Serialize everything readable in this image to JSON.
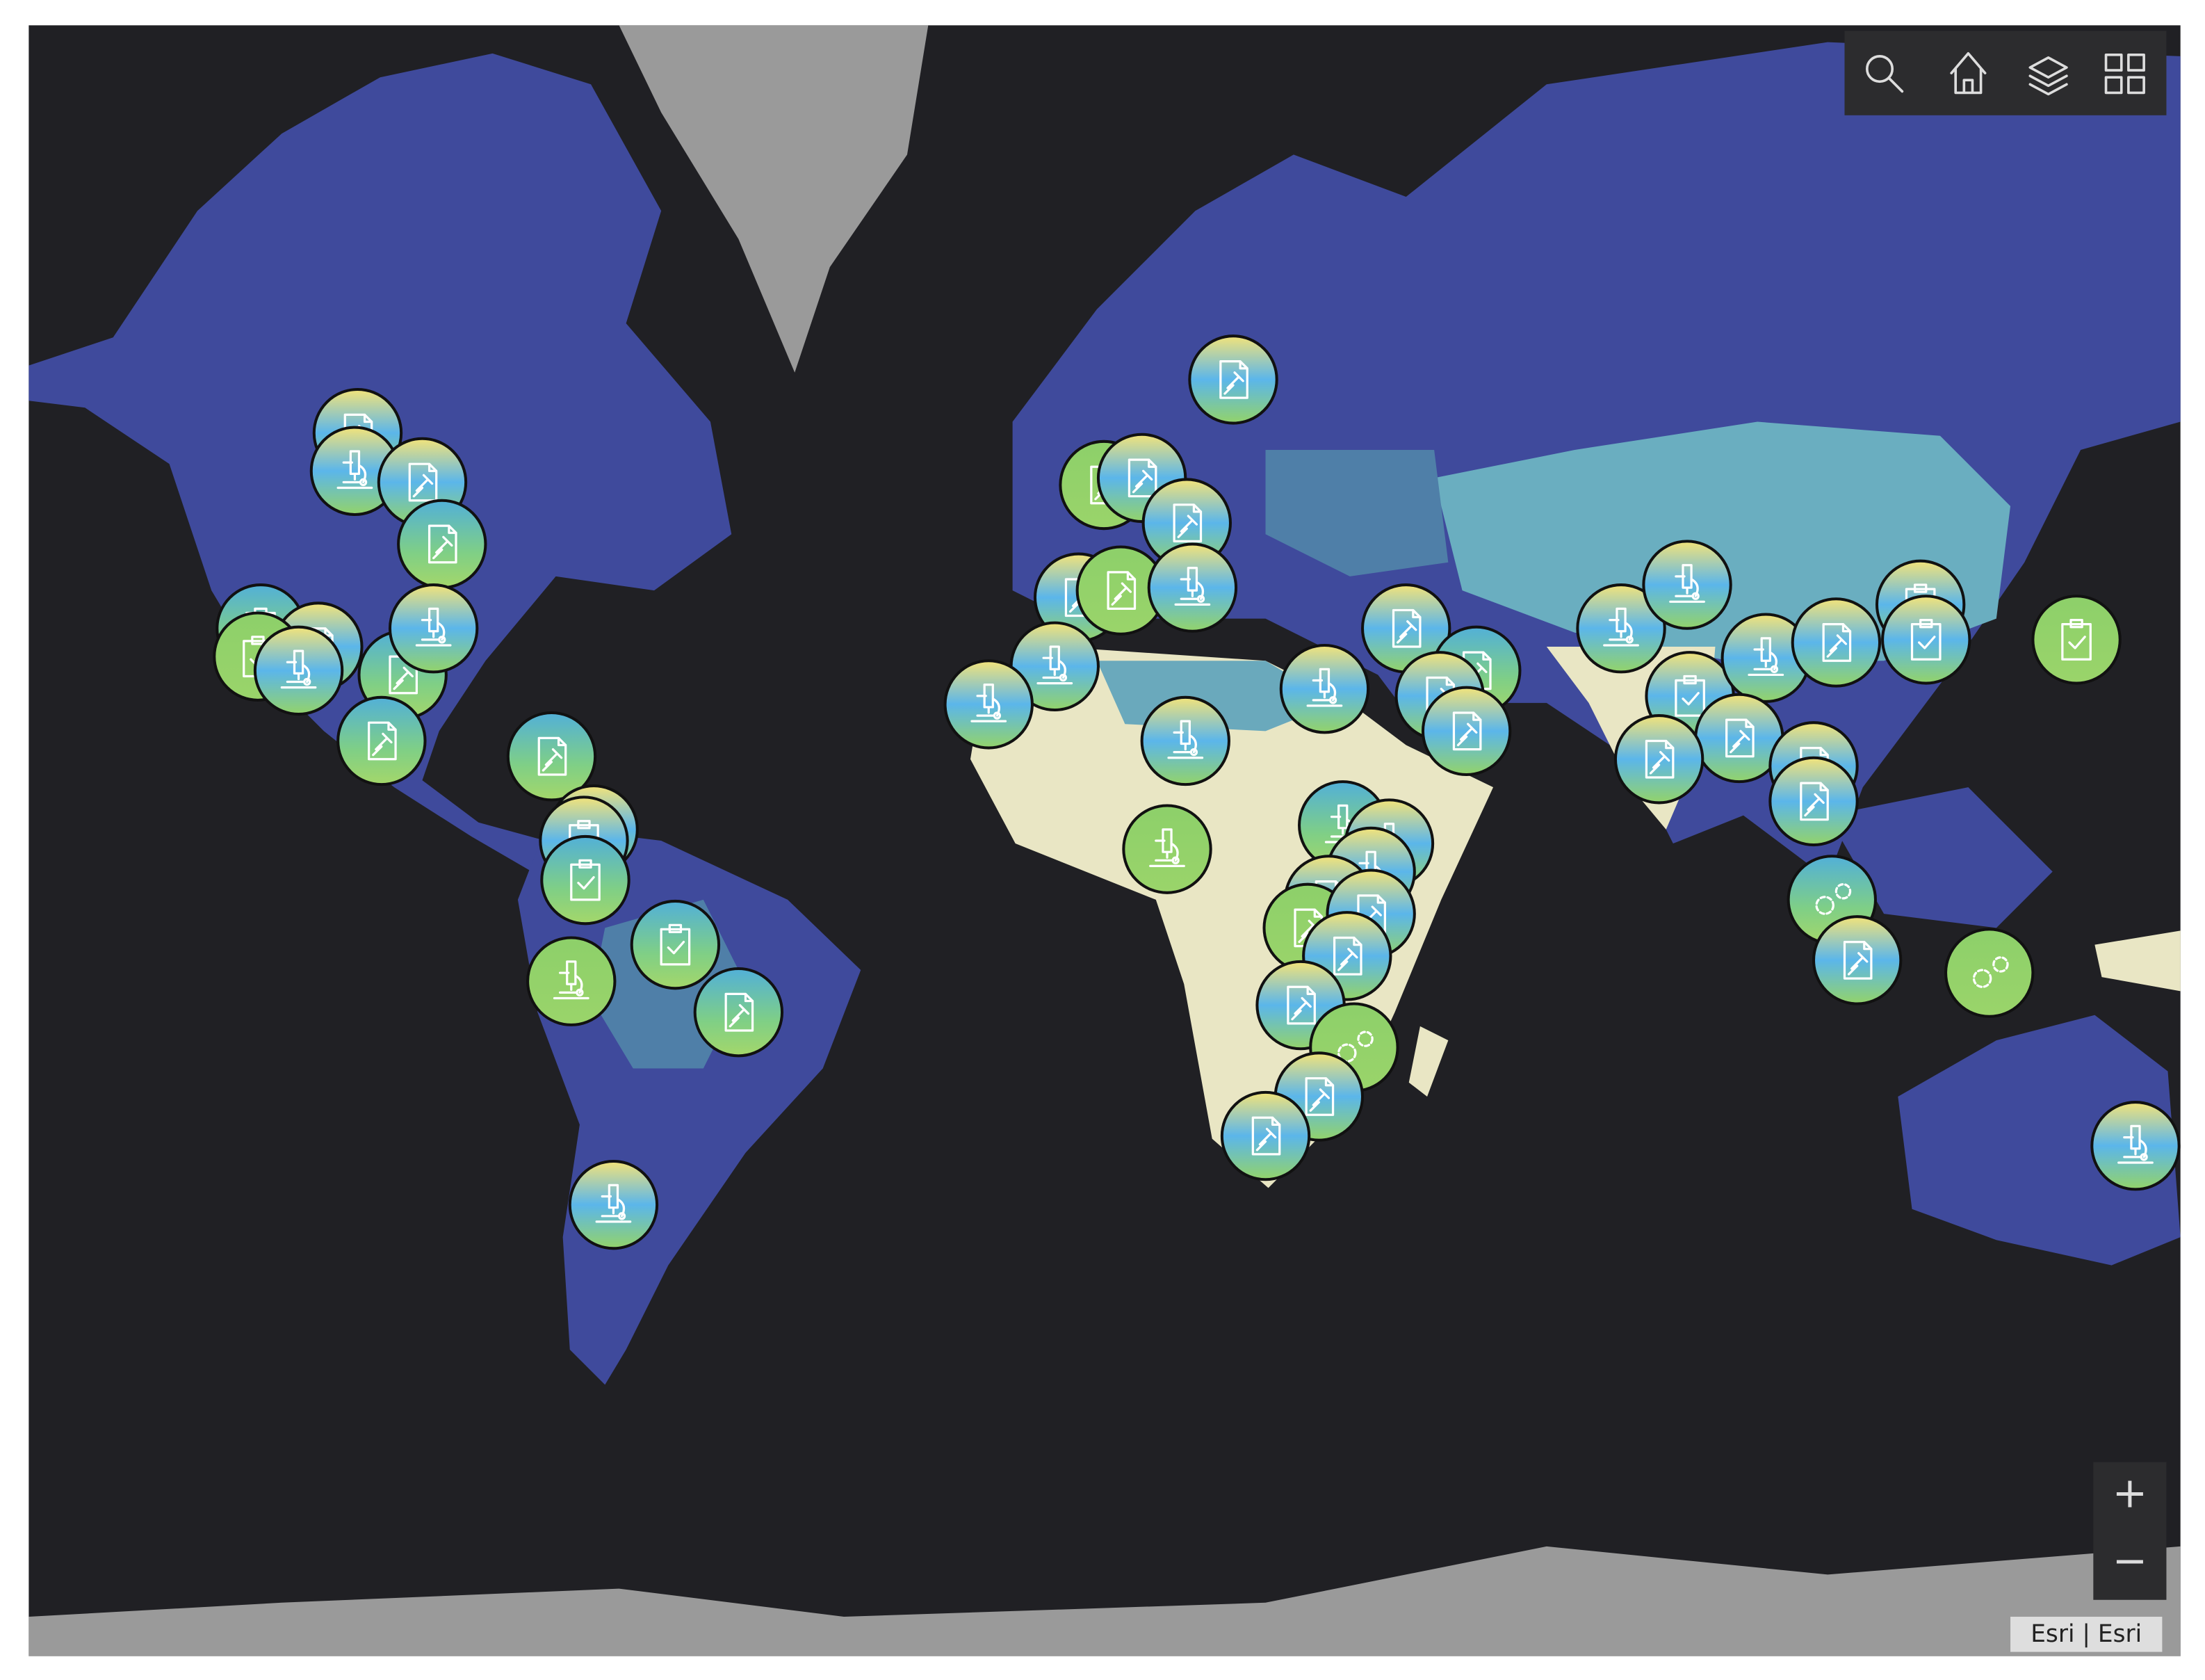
{
  "attribution": "Esri | Esri",
  "zoom": {
    "in": "+",
    "out": "−"
  }
}
